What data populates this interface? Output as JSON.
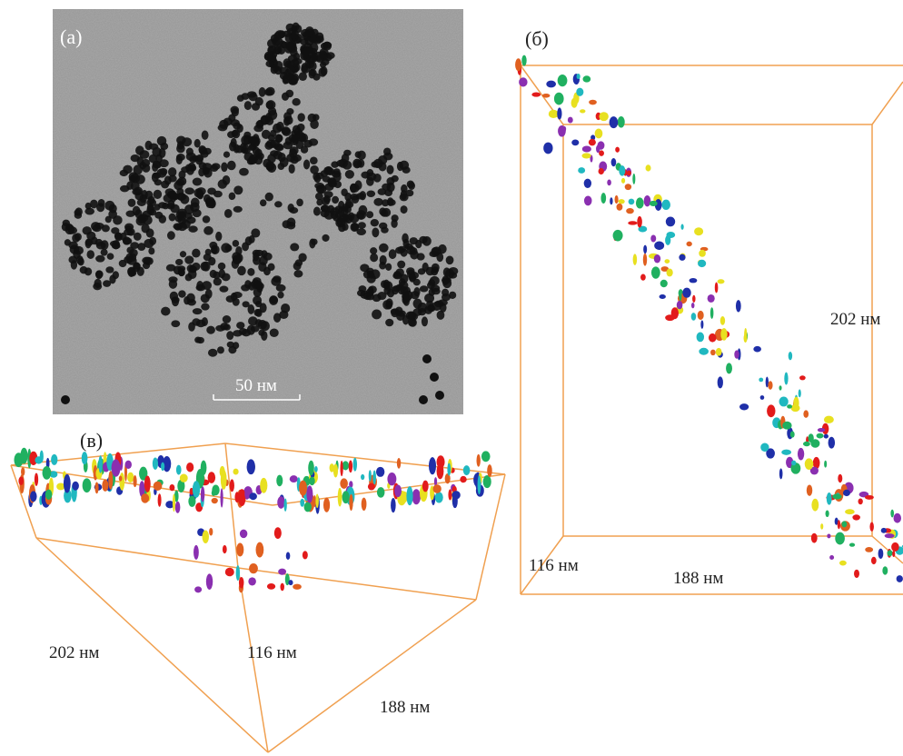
{
  "panels": [
    {
      "label": "(а)",
      "scale_bar": "50 нм"
    },
    {
      "label": "(б)",
      "dimensions": [
        "202 нм",
        "116 нм",
        "188 нм"
      ]
    },
    {
      "label": "(в)",
      "dimensions": [
        "202 нм",
        "116 нм",
        "188 нм"
      ]
    }
  ]
}
